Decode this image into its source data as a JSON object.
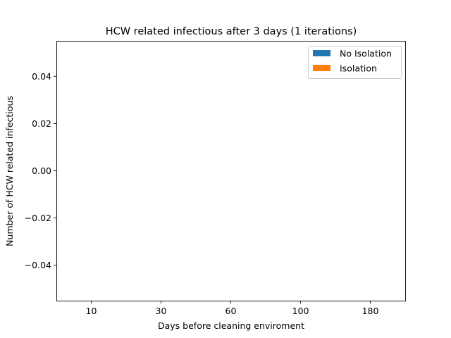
{
  "chart_data": {
    "type": "bar",
    "title": "HCW related infectious after 3 days (1 iterations)",
    "xlabel": "Days before cleaning enviroment",
    "ylabel": "Number of HCW related infectious",
    "categories": [
      "10",
      "30",
      "60",
      "100",
      "180"
    ],
    "series": [
      {
        "name": "No Isolation",
        "color": "#1f77b4",
        "values": [
          0,
          0,
          0,
          0,
          0
        ]
      },
      {
        "name": "Isolation",
        "color": "#ff7f0e",
        "values": [
          0,
          0,
          0,
          0,
          0
        ]
      }
    ],
    "ylim": [
      -0.055,
      0.055
    ],
    "yticks": [
      -0.04,
      -0.02,
      0.0,
      0.02,
      0.04
    ],
    "ytick_labels": [
      "−0.04",
      "−0.02",
      "0.00",
      "0.02",
      "0.04"
    ],
    "grid": false,
    "legend_position": "top-right"
  }
}
